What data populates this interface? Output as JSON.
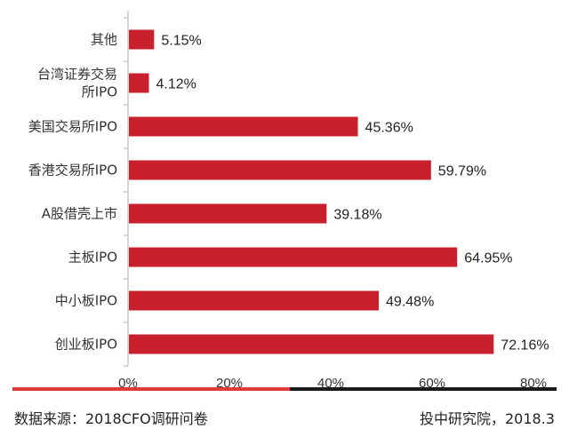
{
  "chart_data": {
    "type": "bar",
    "orientation": "horizontal",
    "categories": [
      [
        "其他"
      ],
      [
        "台湾证券交易",
        "所IPO"
      ],
      [
        "美国交易所IPO"
      ],
      [
        "香港交易所IPO"
      ],
      [
        "A股借壳上市"
      ],
      [
        "主板IPO"
      ],
      [
        "中小板IPO"
      ],
      [
        "创业板IPO"
      ]
    ],
    "values": [
      5.15,
      4.12,
      45.36,
      59.79,
      39.18,
      64.95,
      49.48,
      72.16
    ],
    "value_labels": [
      "5.15%",
      "4.12%",
      "45.36%",
      "59.79%",
      "39.18%",
      "64.95%",
      "49.48%",
      "72.16%"
    ],
    "xlim": [
      0,
      80
    ],
    "x_ticks": [
      0,
      20,
      40,
      60,
      80
    ],
    "x_tick_labels": [
      "0%",
      "20%",
      "40%",
      "60%",
      "80%"
    ],
    "grid": false,
    "bar_color": "#c8202d",
    "axis_color": "#c8c8c8"
  },
  "footer": {
    "source": "数据来源：2018CFO调研问卷",
    "org": "投中研究院，2018.3",
    "accent_color": "#e03a3a"
  }
}
